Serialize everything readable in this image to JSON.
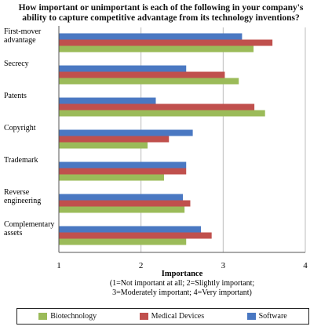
{
  "chart_data": {
    "type": "bar",
    "orientation": "horizontal",
    "title": "How important or unimportant is each of the following in your company's ability to capture competitive advantage from its technology inventions?",
    "title_lines": [
      "How important or unimportant is each of the following in your company's",
      "ability to capture competitive advantage from its technology inventions?"
    ],
    "categories": [
      "First-mover advantage",
      "Secrecy",
      "Patents",
      "Copyright",
      "Trademark",
      "Reverse engineering",
      "Complementary assets"
    ],
    "category_lines": [
      [
        "First-mover",
        "advantage"
      ],
      [
        "Secrecy"
      ],
      [
        "Patents"
      ],
      [
        "Copyright"
      ],
      [
        "Trademark"
      ],
      [
        "Reverse",
        "engineering"
      ],
      [
        "Complementary",
        "assets"
      ]
    ],
    "series": [
      {
        "name": "Software",
        "color": "#4a78c2",
        "values": [
          3.23,
          2.55,
          2.18,
          2.63,
          2.55,
          2.51,
          2.73
        ]
      },
      {
        "name": "Medical Devices",
        "color": "#c0504d",
        "values": [
          3.6,
          3.02,
          3.38,
          2.34,
          2.55,
          2.6,
          2.86
        ]
      },
      {
        "name": "Biotechnology",
        "color": "#9bbb59",
        "values": [
          3.37,
          3.19,
          3.51,
          2.08,
          2.28,
          2.53,
          2.55
        ]
      }
    ],
    "xlim": [
      1,
      4
    ],
    "xticks": [
      "1",
      "2",
      "3",
      "4"
    ],
    "xlabel": "Importance",
    "xlabel_note_lines": [
      "(1=Not important at all; 2=Slightly important;",
      "3=Moderately important; 4=Very important)"
    ],
    "grid": {
      "vertical": true,
      "horizontal": false
    },
    "legend": {
      "position": "bottom",
      "order": [
        "Biotechnology",
        "Medical Devices",
        "Software"
      ]
    }
  }
}
